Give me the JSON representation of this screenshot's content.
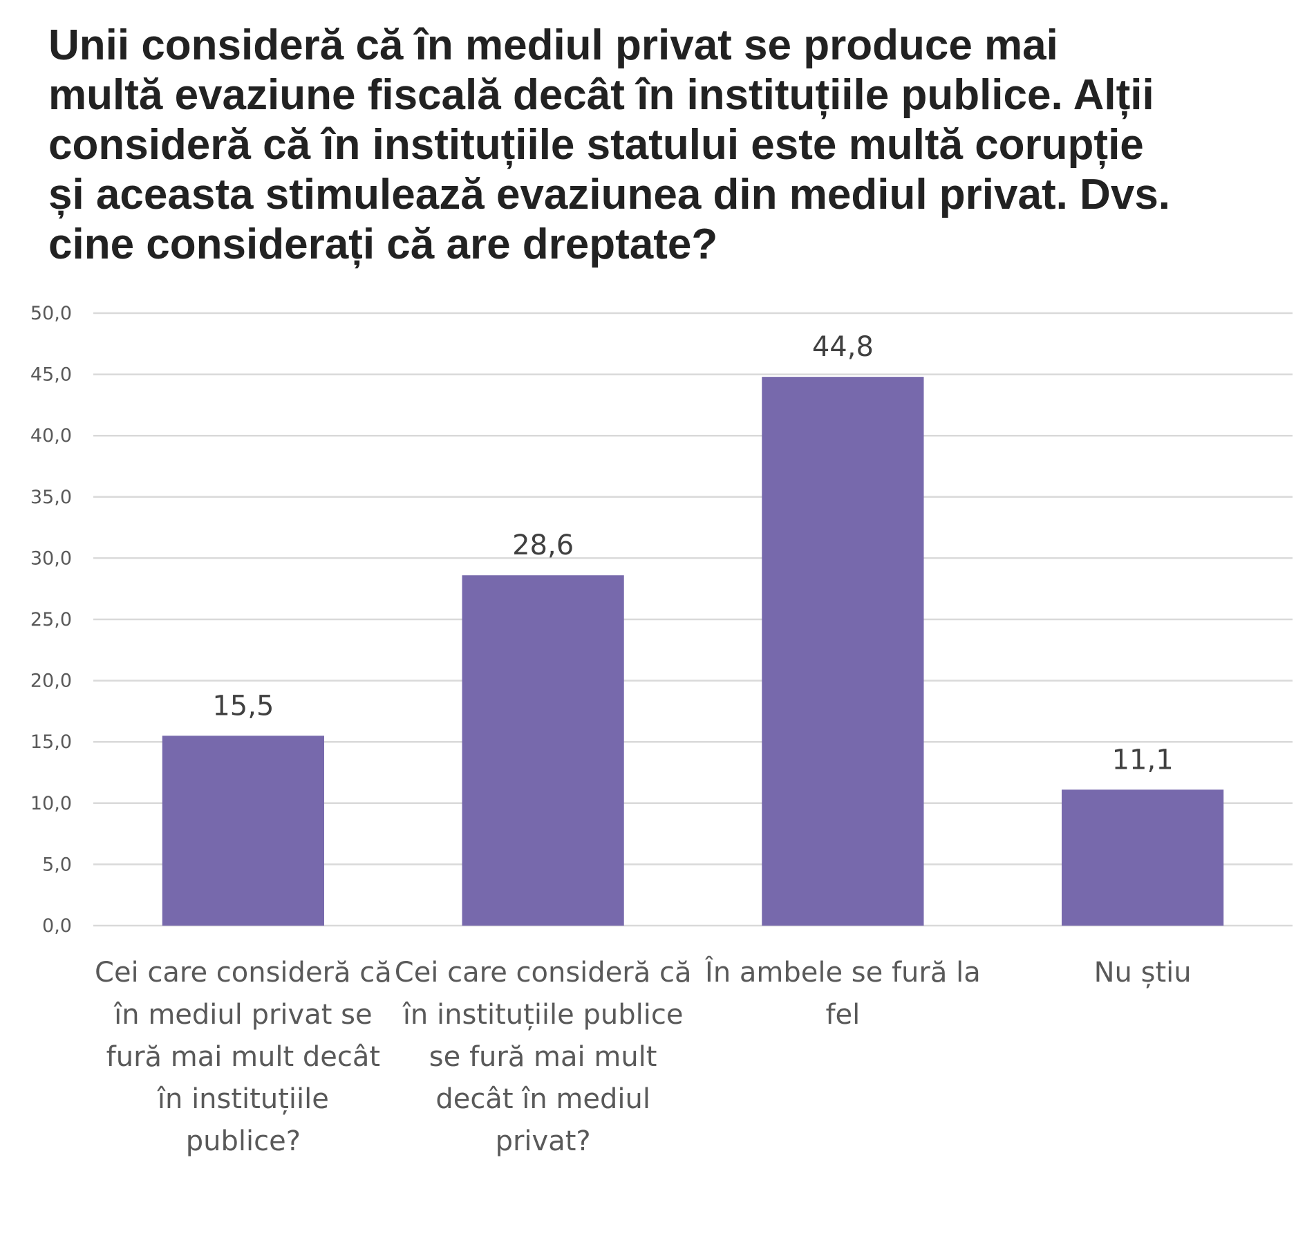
{
  "chart_data": {
    "type": "bar",
    "title": "Unii consideră că în mediul privat se produce mai multă evaziune fiscală decât în instituțiile publice. Alții consideră că în instituțiile statului este multă corupție și aceasta stimulează evaziunea din mediul privat. Dvs. cine considerați că are dreptate?",
    "title_lines": [
      "Unii consideră că în mediul privat se produce mai",
      "multă evaziune fiscală decât în instituțiile publice. Alții",
      "consideră că în instituțiile statului este multă corupție",
      "și aceasta stimulează evaziunea din mediul privat. Dvs.",
      "cine considerați că are dreptate?"
    ],
    "categories": [
      "Cei care consideră că în mediul privat se fură mai mult decât în instituțiile publice?",
      "Cei care consideră că în instituțiile publice se fură mai mult decât în mediul privat?",
      "În ambele se fură la fel",
      "Nu știu"
    ],
    "category_lines": [
      [
        "Cei care consideră că",
        "în mediul privat se",
        "fură mai mult decât",
        "în instituțiile",
        "publice?"
      ],
      [
        "Cei care consideră că",
        "în instituțiile publice",
        "se fură mai mult",
        "decât în mediul",
        "privat?"
      ],
      [
        "În ambele se fură la",
        "fel"
      ],
      [
        "Nu știu"
      ]
    ],
    "values": [
      15.5,
      28.6,
      44.8,
      11.1
    ],
    "value_labels": [
      "15,5",
      "28,6",
      "44,8",
      "11,1"
    ],
    "ylim": [
      0,
      50
    ],
    "yticks": [
      "0,0",
      "5,0",
      "10,0",
      "15,0",
      "20,0",
      "25,0",
      "30,0",
      "35,0",
      "40,0",
      "45,0",
      "50,0"
    ],
    "xlabel": "",
    "ylabel": "",
    "grid": true,
    "bar_color": "#7769AC",
    "grid_color": "#D9D9D9"
  }
}
